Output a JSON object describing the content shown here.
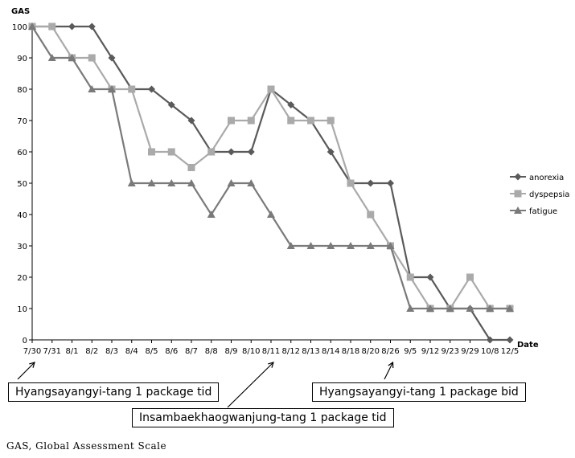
{
  "chart_data": {
    "type": "line",
    "ylabel": "GAS",
    "xlabel": "Date",
    "ylim": [
      0,
      100
    ],
    "yticks": [
      0,
      10,
      20,
      30,
      40,
      50,
      60,
      70,
      80,
      90,
      100
    ],
    "categories": [
      "7/30",
      "7/31",
      "8/1",
      "8/2",
      "8/3",
      "8/4",
      "8/5",
      "8/6",
      "8/7",
      "8/8",
      "8/9",
      "8/10",
      "8/11",
      "8/12",
      "8/13",
      "8/14",
      "8/18",
      "8/20",
      "8/26",
      "9/5",
      "9/12",
      "9/23",
      "9/29",
      "10/8",
      "12/5"
    ],
    "legend_position": "right",
    "grid": false,
    "series": [
      {
        "name": "anorexia",
        "color": "#5a5a5a",
        "marker": "diamond",
        "values": [
          100,
          100,
          100,
          100,
          90,
          80,
          80,
          75,
          70,
          60,
          60,
          60,
          80,
          75,
          70,
          60,
          50,
          50,
          50,
          20,
          20,
          10,
          10,
          0,
          0
        ]
      },
      {
        "name": "dyspepsia",
        "color": "#aaaaaa",
        "marker": "square",
        "values": [
          100,
          100,
          90,
          90,
          80,
          80,
          60,
          60,
          55,
          60,
          70,
          70,
          80,
          70,
          70,
          70,
          50,
          40,
          30,
          20,
          10,
          10,
          20,
          10,
          10
        ]
      },
      {
        "name": "fatigue",
        "color": "#7a7a7a",
        "marker": "triangle",
        "values": [
          100,
          90,
          90,
          80,
          80,
          50,
          50,
          50,
          50,
          40,
          50,
          50,
          40,
          30,
          30,
          30,
          30,
          30,
          30,
          10,
          10,
          10,
          10,
          10,
          10
        ]
      }
    ]
  },
  "annotations": [
    {
      "text": "Hyangsayangyi-tang 1 package tid",
      "date": "7/30"
    },
    {
      "text": "Insambaekhaogwanjung-tang 1 package tid",
      "date": "8/11"
    },
    {
      "text": "Hyangsayangyi-tang 1 package bid",
      "date": "8/26"
    }
  ],
  "footnote": "GAS, Global Assessment Scale"
}
